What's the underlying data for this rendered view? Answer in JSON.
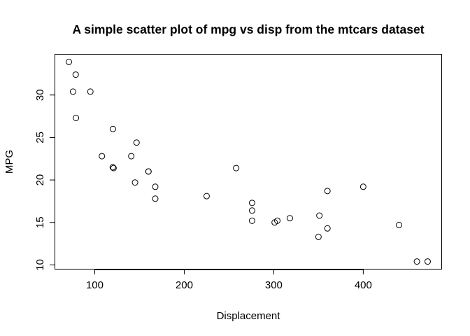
{
  "chart_data": {
    "type": "scatter",
    "title": "A simple scatter plot of mpg vs disp from the mtcars dataset",
    "xlabel": "Displacement",
    "ylabel": "MPG",
    "xlim": [
      71.1,
      472
    ],
    "ylim": [
      10.4,
      33.9
    ],
    "x_ticks": [
      100,
      200,
      300,
      400
    ],
    "y_ticks": [
      10,
      15,
      20,
      25,
      30
    ],
    "grid": false,
    "legend": "none",
    "point_style": "open-circle",
    "points": [
      {
        "x": 160,
        "y": 21.0
      },
      {
        "x": 160,
        "y": 21.0
      },
      {
        "x": 108,
        "y": 22.8
      },
      {
        "x": 258,
        "y": 21.4
      },
      {
        "x": 360,
        "y": 18.7
      },
      {
        "x": 225,
        "y": 18.1
      },
      {
        "x": 360,
        "y": 14.3
      },
      {
        "x": 146.7,
        "y": 24.4
      },
      {
        "x": 140.8,
        "y": 22.8
      },
      {
        "x": 167.6,
        "y": 19.2
      },
      {
        "x": 167.6,
        "y": 17.8
      },
      {
        "x": 275.8,
        "y": 16.4
      },
      {
        "x": 275.8,
        "y": 17.3
      },
      {
        "x": 275.8,
        "y": 15.2
      },
      {
        "x": 472,
        "y": 10.4
      },
      {
        "x": 460,
        "y": 10.4
      },
      {
        "x": 440,
        "y": 14.7
      },
      {
        "x": 78.7,
        "y": 32.4
      },
      {
        "x": 75.7,
        "y": 30.4
      },
      {
        "x": 71.1,
        "y": 33.9
      },
      {
        "x": 120.1,
        "y": 21.5
      },
      {
        "x": 318,
        "y": 15.5
      },
      {
        "x": 304,
        "y": 15.2
      },
      {
        "x": 350,
        "y": 13.3
      },
      {
        "x": 400,
        "y": 19.2
      },
      {
        "x": 79,
        "y": 27.3
      },
      {
        "x": 120.3,
        "y": 26.0
      },
      {
        "x": 95.1,
        "y": 30.4
      },
      {
        "x": 351,
        "y": 15.8
      },
      {
        "x": 145,
        "y": 19.7
      },
      {
        "x": 301,
        "y": 15.0
      },
      {
        "x": 121,
        "y": 21.4
      }
    ]
  }
}
